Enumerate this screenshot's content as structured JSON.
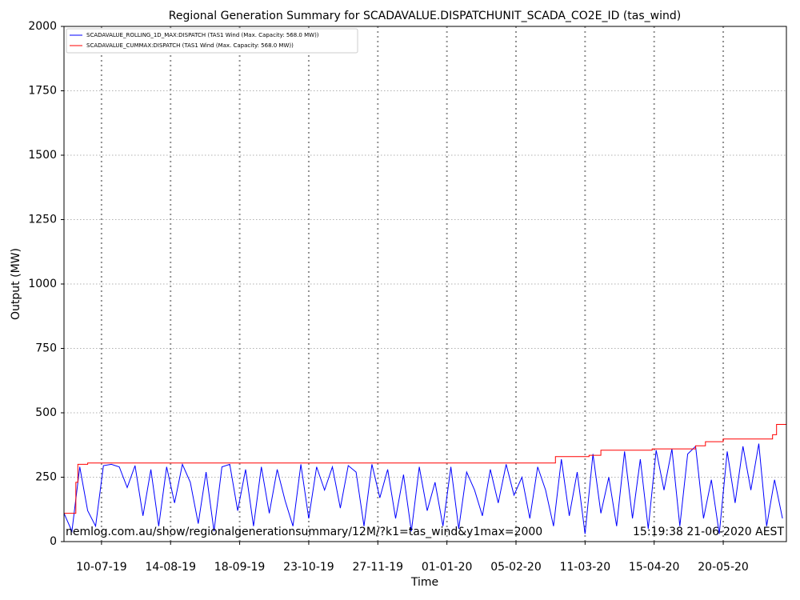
{
  "chart_data": {
    "type": "line",
    "title": "Regional Generation Summary for SCADAVALUE.DISPATCHUNIT_SCADA_CO2E_ID (tas_wind)",
    "xlabel": "Time",
    "ylabel": "Output (MW)",
    "annotations": [
      "nemlog.com.au/show/regionalgenerationsummary/12M/?k1=tas_wind&y1max=2000",
      "15:19:38 21-06-2020 AEST"
    ],
    "xlim": [
      "2019-06-21",
      "2020-06-21"
    ],
    "xticks": [
      {
        "value": "2019-07-10",
        "label": "10-07-19"
      },
      {
        "value": "2019-08-14",
        "label": "14-08-19"
      },
      {
        "value": "2019-09-18",
        "label": "18-09-19"
      },
      {
        "value": "2019-10-23",
        "label": "23-10-19"
      },
      {
        "value": "2019-11-27",
        "label": "27-11-19"
      },
      {
        "value": "2020-01-01",
        "label": "01-01-20"
      },
      {
        "value": "2020-02-05",
        "label": "05-02-20"
      },
      {
        "value": "2020-03-11",
        "label": "11-03-20"
      },
      {
        "value": "2020-04-15",
        "label": "15-04-20"
      },
      {
        "value": "2020-05-20",
        "label": "20-05-20"
      }
    ],
    "ylim": [
      0,
      2000
    ],
    "yticks": [
      0,
      250,
      500,
      750,
      1000,
      1250,
      1500,
      1750,
      2000
    ],
    "grid": true,
    "legend": "upper left",
    "series": [
      {
        "name": "SCADAVALUE_ROLLING_1D_MAX:DISPATCH (TAS1 Wind (Max. Capacity: 568.0 MW))",
        "color": "#0000ff",
        "x": [
          "2019-06-21",
          "2019-06-25",
          "2019-06-29",
          "2019-07-03",
          "2019-07-07",
          "2019-07-11",
          "2019-07-15",
          "2019-07-19",
          "2019-07-23",
          "2019-07-27",
          "2019-07-31",
          "2019-08-04",
          "2019-08-08",
          "2019-08-12",
          "2019-08-16",
          "2019-08-20",
          "2019-08-24",
          "2019-08-28",
          "2019-09-01",
          "2019-09-05",
          "2019-09-09",
          "2019-09-13",
          "2019-09-17",
          "2019-09-21",
          "2019-09-25",
          "2019-09-29",
          "2019-10-03",
          "2019-10-07",
          "2019-10-11",
          "2019-10-15",
          "2019-10-19",
          "2019-10-23",
          "2019-10-27",
          "2019-10-31",
          "2019-11-04",
          "2019-11-08",
          "2019-11-12",
          "2019-11-16",
          "2019-11-20",
          "2019-11-24",
          "2019-11-28",
          "2019-12-02",
          "2019-12-06",
          "2019-12-10",
          "2019-12-14",
          "2019-12-18",
          "2019-12-22",
          "2019-12-26",
          "2019-12-30",
          "2020-01-03",
          "2020-01-07",
          "2020-01-11",
          "2020-01-15",
          "2020-01-19",
          "2020-01-23",
          "2020-01-27",
          "2020-01-31",
          "2020-02-04",
          "2020-02-08",
          "2020-02-12",
          "2020-02-16",
          "2020-02-20",
          "2020-02-24",
          "2020-02-28",
          "2020-03-03",
          "2020-03-07",
          "2020-03-11",
          "2020-03-15",
          "2020-03-19",
          "2020-03-23",
          "2020-03-27",
          "2020-03-31",
          "2020-04-04",
          "2020-04-08",
          "2020-04-12",
          "2020-04-16",
          "2020-04-20",
          "2020-04-24",
          "2020-04-28",
          "2020-05-02",
          "2020-05-06",
          "2020-05-10",
          "2020-05-14",
          "2020-05-18",
          "2020-05-22",
          "2020-05-26",
          "2020-05-30",
          "2020-06-03",
          "2020-06-07",
          "2020-06-11",
          "2020-06-15",
          "2020-06-19"
        ],
        "values": [
          110,
          40,
          290,
          120,
          60,
          295,
          300,
          290,
          210,
          295,
          100,
          280,
          60,
          290,
          150,
          300,
          230,
          70,
          270,
          40,
          290,
          300,
          120,
          280,
          60,
          290,
          110,
          280,
          160,
          60,
          300,
          90,
          290,
          200,
          290,
          130,
          295,
          270,
          60,
          300,
          170,
          280,
          90,
          260,
          40,
          290,
          120,
          230,
          60,
          290,
          50,
          270,
          200,
          100,
          280,
          150,
          300,
          180,
          250,
          90,
          290,
          200,
          60,
          320,
          100,
          270,
          30,
          340,
          110,
          250,
          60,
          350,
          90,
          320,
          50,
          355,
          200,
          360,
          60,
          340,
          370,
          90,
          240,
          30,
          350,
          150,
          370,
          200,
          380,
          60,
          240,
          90
        ]
      },
      {
        "name": "SCADAVALUE_CUMMAX:DISPATCH (TAS1 Wind (Max. Capacity: 568.0 MW))",
        "color": "#ff0000",
        "x": [
          "2019-06-21",
          "2019-06-27",
          "2019-06-27",
          "2019-06-28",
          "2019-06-28",
          "2019-07-03",
          "2019-07-03",
          "2020-02-25",
          "2020-02-25",
          "2020-03-13",
          "2020-03-13",
          "2020-03-19",
          "2020-03-19",
          "2020-04-14",
          "2020-04-14",
          "2020-05-06",
          "2020-05-06",
          "2020-05-11",
          "2020-05-11",
          "2020-05-20",
          "2020-05-20",
          "2020-06-14",
          "2020-06-14",
          "2020-06-16",
          "2020-06-16",
          "2020-06-21"
        ],
        "values": [
          110,
          110,
          230,
          230,
          300,
          300,
          305,
          305,
          330,
          330,
          335,
          335,
          355,
          355,
          360,
          360,
          372,
          372,
          388,
          388,
          398,
          398,
          415,
          415,
          455,
          455
        ]
      }
    ]
  }
}
